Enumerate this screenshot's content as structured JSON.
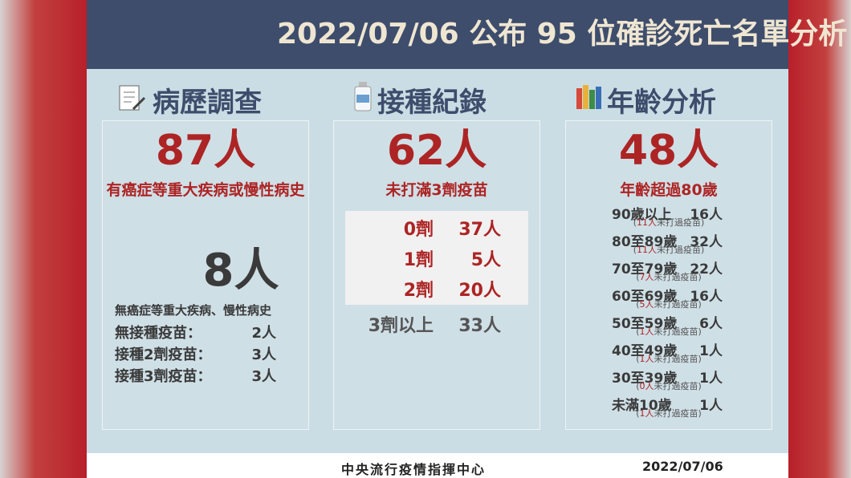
{
  "header": {
    "title": "2022/07/06 公布 95 位確診死亡名單分析"
  },
  "history": {
    "heading": "病歷調查",
    "main_count": "87人",
    "main_desc": "有癌症等重大疾病或慢性病史",
    "sub_count": "8人",
    "sub_desc": "無癌症等重大疾病、慢性病史",
    "rows": [
      {
        "label": "無接種疫苗：",
        "value": "2人"
      },
      {
        "label": "接種2劑疫苗：",
        "value": "3人"
      },
      {
        "label": "接種3劑疫苗：",
        "value": "3人"
      }
    ]
  },
  "vaccine": {
    "heading": "接種紀錄",
    "main_count": "62人",
    "main_desc": "未打滿3劑疫苗",
    "rows": [
      {
        "label": "0劑",
        "value": "37人"
      },
      {
        "label": "1劑",
        "value": "5人"
      },
      {
        "label": "2劑",
        "value": "20人"
      }
    ],
    "other": {
      "label": "3劑以上",
      "value": "33人"
    }
  },
  "age": {
    "heading": "年齡分析",
    "main_count": "48人",
    "main_desc": "年齡超過80歲",
    "rows": [
      {
        "label": "90歲以上",
        "value": "16人",
        "note": [
          "(",
          "11人",
          "未打過疫苗)"
        ]
      },
      {
        "label": "80至89歲",
        "value": "32人",
        "note": [
          "(",
          "11人",
          "未打過疫苗)"
        ]
      },
      {
        "label": "70至79歲",
        "value": "22人",
        "note": [
          "(",
          "7人",
          "未打過疫苗)"
        ]
      },
      {
        "label": "60至69歲",
        "value": "16人",
        "note": [
          "(",
          "5人",
          "未打過疫苗)"
        ]
      },
      {
        "label": "50至59歲",
        "value": "6人",
        "note": [
          "(",
          "1人",
          "未打過疫苗)"
        ]
      },
      {
        "label": "40至49歲",
        "value": "1人",
        "note": [
          "(",
          "1人",
          "未打過疫苗)"
        ]
      },
      {
        "label": "30至39歲",
        "value": "1人",
        "note": [
          "(",
          "0人",
          "未打過疫苗)"
        ]
      },
      {
        "label": "未滿10歲",
        "value": "1人",
        "note": [
          "(",
          "1人",
          "未打過疫苗)"
        ]
      }
    ]
  },
  "footer": {
    "source": "中央流行疫情指揮中心",
    "date": "2022/07/06"
  }
}
